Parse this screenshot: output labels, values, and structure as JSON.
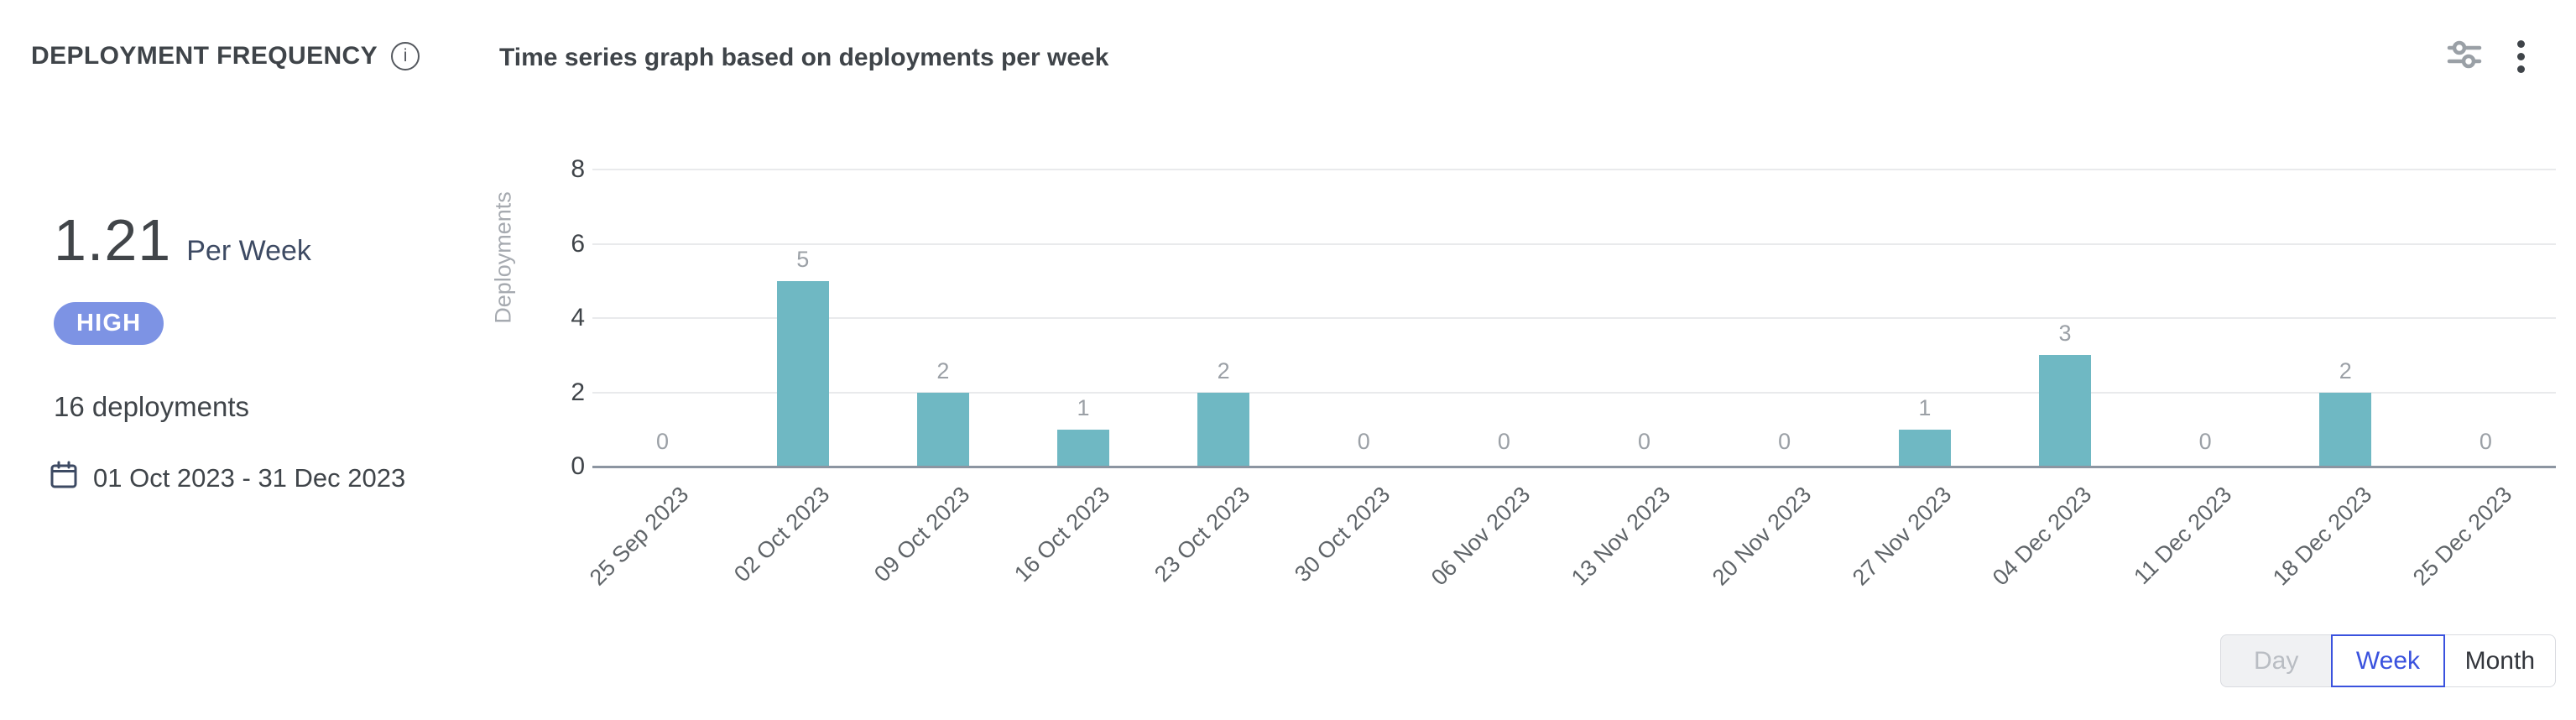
{
  "header": {
    "title": "DEPLOYMENT FREQUENCY",
    "subtitle": "Time series graph based on deployments per week"
  },
  "summary": {
    "rate_value": "1.21",
    "rate_unit": "Per Week",
    "level": "HIGH",
    "total_deployments": "16 deployments",
    "date_range": "01 Oct 2023 - 31 Dec 2023"
  },
  "chart_data": {
    "type": "bar",
    "title": "Time series graph based on deployments per week",
    "categories": [
      "25 Sep 2023",
      "02 Oct 2023",
      "09 Oct 2023",
      "16 Oct 2023",
      "23 Oct 2023",
      "30 Oct 2023",
      "06 Nov 2023",
      "13 Nov 2023",
      "20 Nov 2023",
      "27 Nov 2023",
      "04 Dec 2023",
      "11 Dec 2023",
      "18 Dec 2023",
      "25 Dec 2023"
    ],
    "values": [
      0,
      5,
      2,
      1,
      2,
      0,
      0,
      0,
      0,
      1,
      3,
      0,
      2,
      0
    ],
    "xlabel": "",
    "ylabel": "Deployments",
    "ylim": [
      0,
      8
    ],
    "yticks": [
      0,
      2,
      4,
      6,
      8
    ],
    "grid": true,
    "legend": "none",
    "bar_color": "#6fb8c3",
    "value_labels": true
  },
  "controls": {
    "granularity": [
      {
        "label": "Day",
        "state": "disabled"
      },
      {
        "label": "Week",
        "state": "selected"
      },
      {
        "label": "Month",
        "state": "default"
      }
    ]
  },
  "icons": {
    "info": "info-icon",
    "filters": "sliders-icon",
    "more": "kebab-menu-icon",
    "calendar": "calendar-icon"
  },
  "colors": {
    "bar": "#6fb8c3",
    "badge_bg": "#7d93e4",
    "selected_blue": "#3a52de",
    "grid": "#e9eaec",
    "axis": "#8c95a1",
    "text_dark": "#3f4449",
    "text_gray": "#9ba0a6",
    "unit_navy": "#3d4a63"
  }
}
